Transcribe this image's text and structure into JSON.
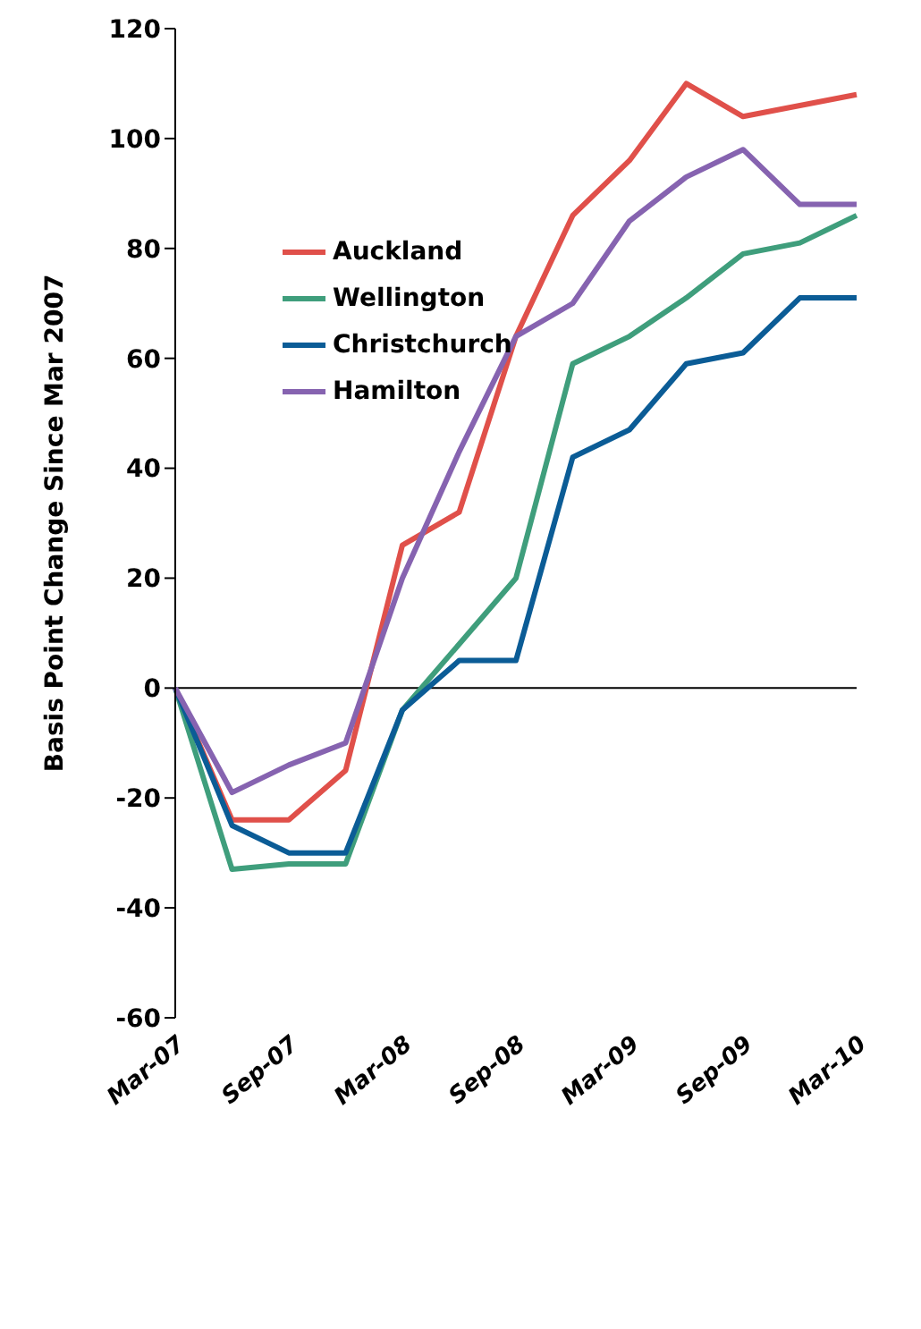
{
  "chart_data": {
    "type": "line",
    "ylabel": "Basis Point Change Since Mar 2007",
    "categories": [
      "Mar-07",
      null,
      "Sep-07",
      null,
      "Mar-08",
      null,
      "Sep-08",
      null,
      "Mar-09",
      null,
      "Sep-09",
      null,
      "Mar-10"
    ],
    "series": [
      {
        "name": "Auckland",
        "color": "#e0504a",
        "values": [
          0,
          -24,
          -24,
          -15,
          26,
          32,
          64,
          86,
          96,
          110,
          104,
          106,
          108
        ]
      },
      {
        "name": "Wellington",
        "color": "#3f9e7c",
        "values": [
          0,
          -33,
          -32,
          -32,
          -4,
          8,
          20,
          59,
          64,
          71,
          79,
          81,
          86
        ]
      },
      {
        "name": "Christchurch",
        "color": "#0b5c96",
        "values": [
          0,
          -25,
          -30,
          -30,
          -4,
          5,
          5,
          42,
          47,
          59,
          61,
          71,
          71
        ]
      },
      {
        "name": "Hamilton",
        "color": "#8663b0",
        "values": [
          0,
          -19,
          -14,
          -10,
          20,
          43,
          64,
          70,
          85,
          93,
          98,
          88,
          88
        ]
      }
    ],
    "ylim": [
      -60,
      120
    ],
    "yticks": [
      -60,
      -40,
      -20,
      0,
      20,
      40,
      60,
      80,
      100,
      120
    ],
    "ref_lines": [
      {
        "axis": "y",
        "value": 0,
        "color": "#000000"
      }
    ],
    "legend": "top left",
    "marker": "none",
    "line_style": "solid"
  }
}
